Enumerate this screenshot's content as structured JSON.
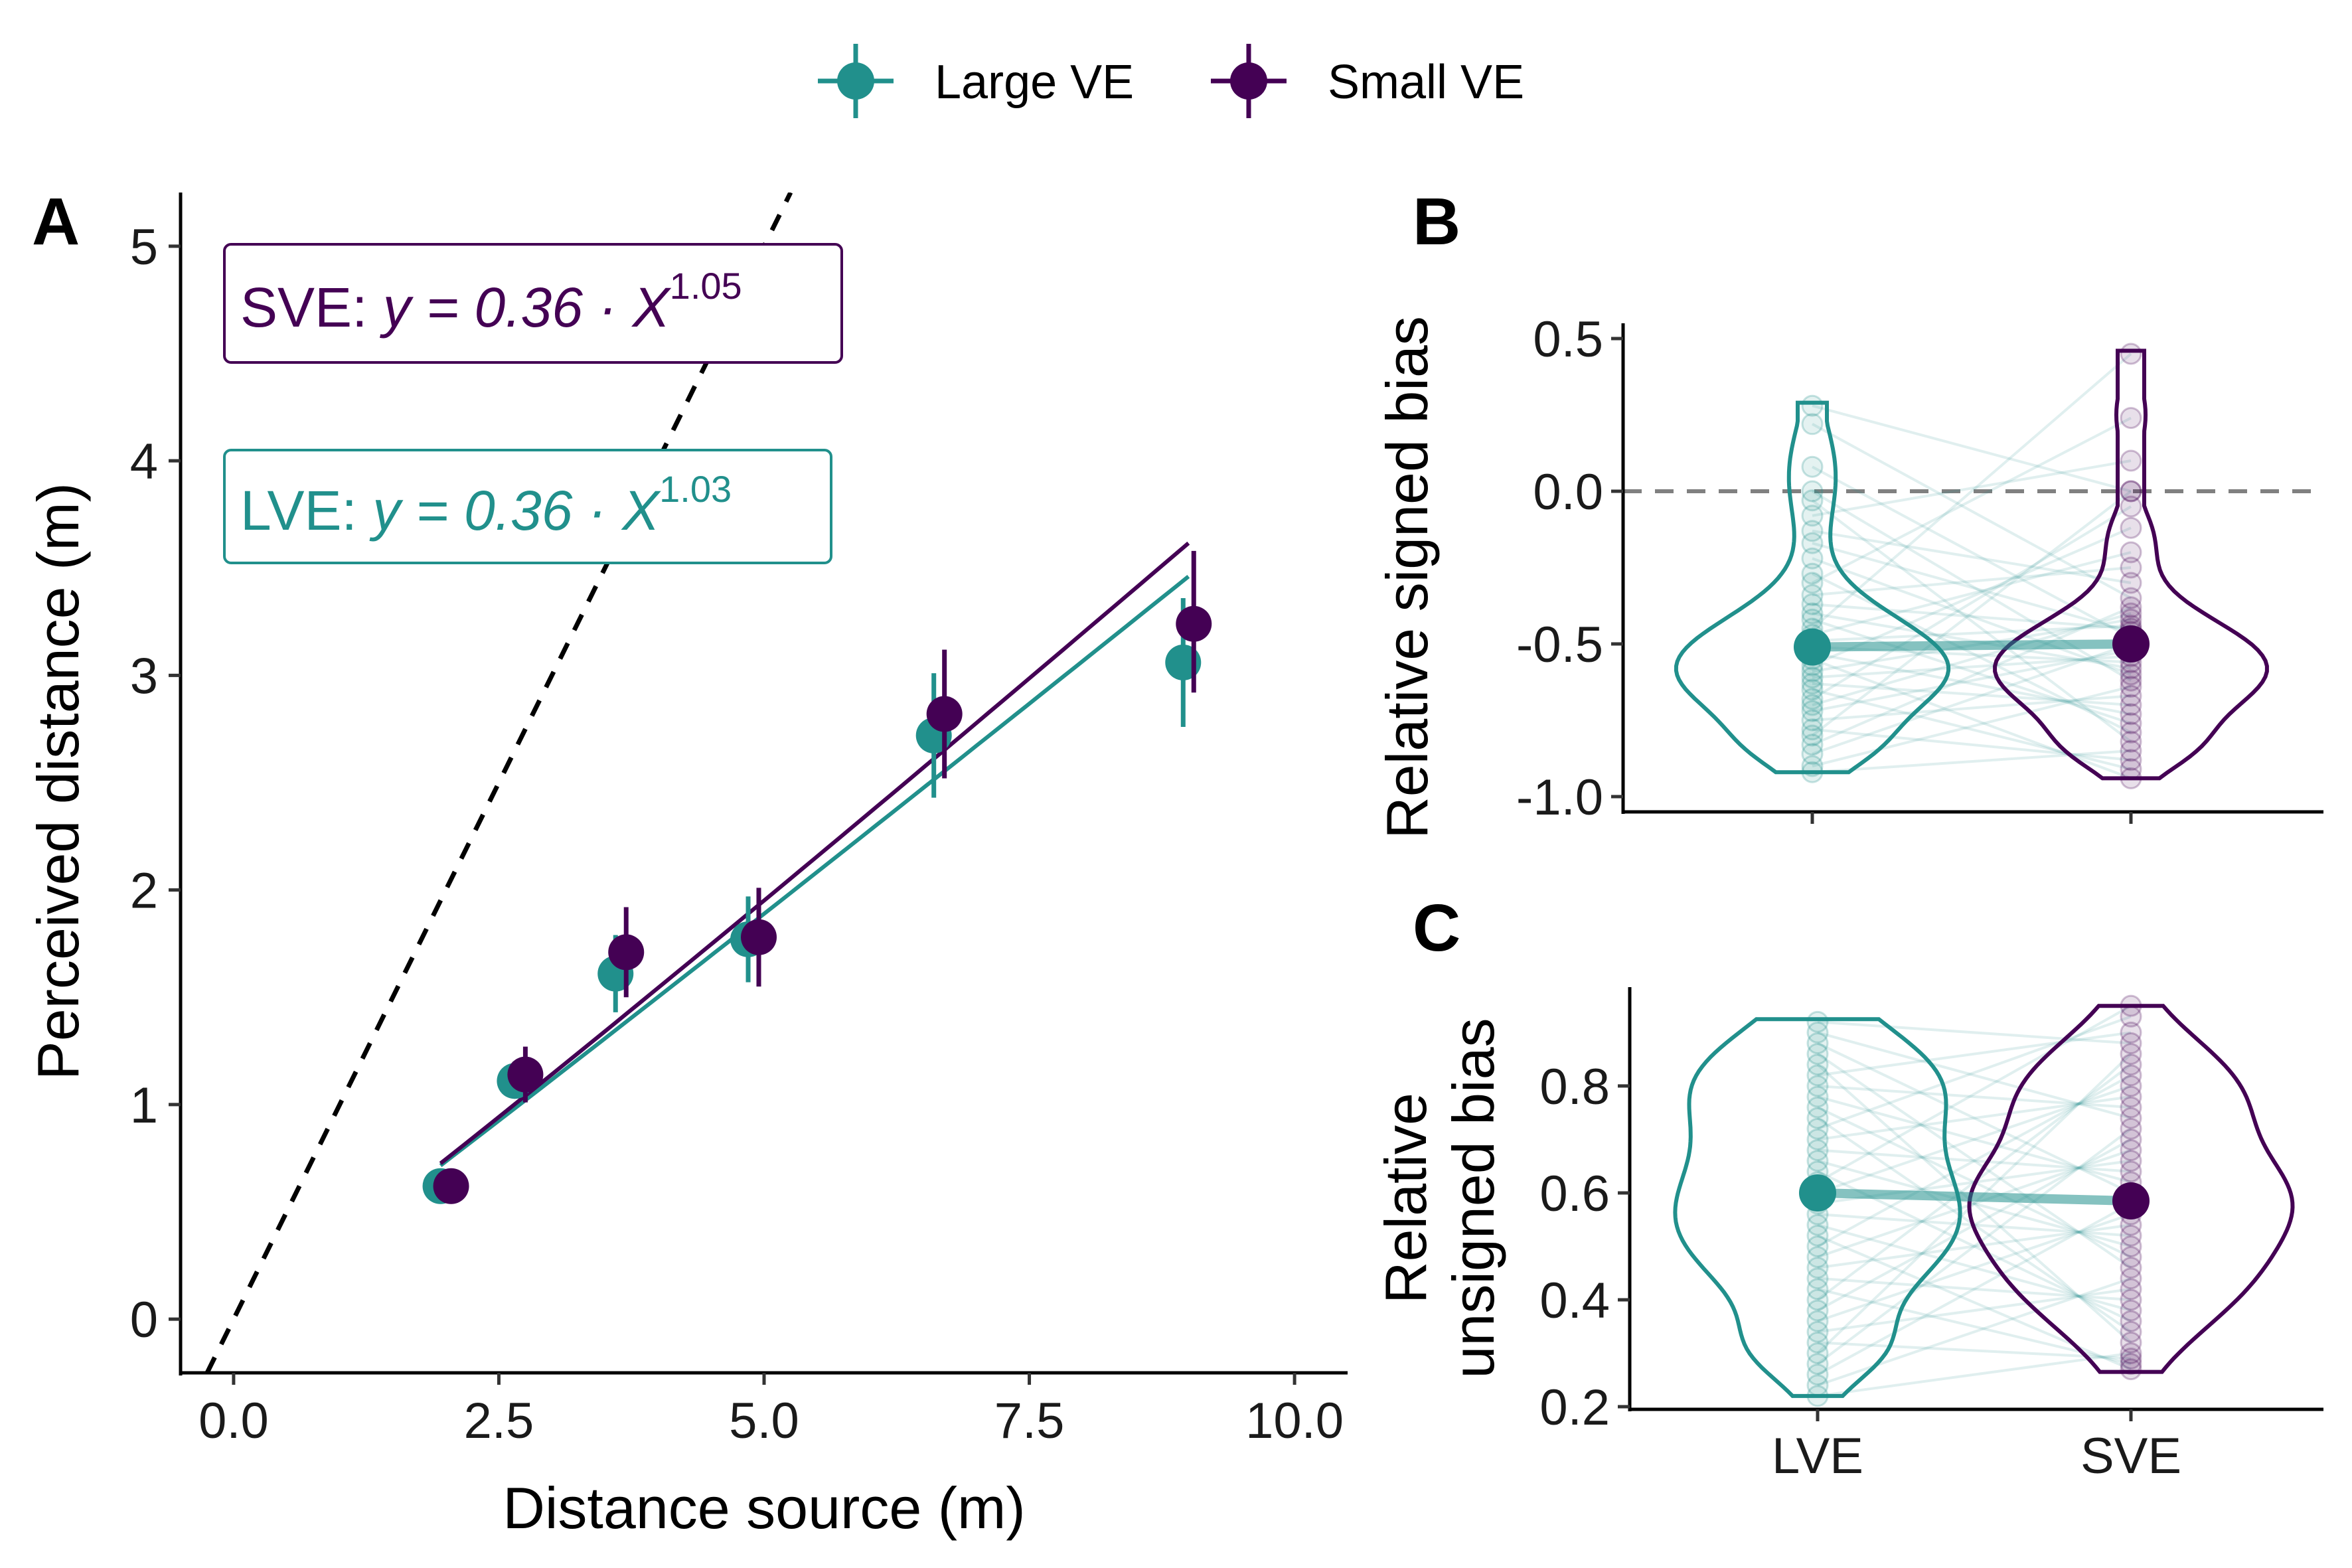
{
  "colors": {
    "large": "#21908C",
    "small": "#440154",
    "reference": "#000000",
    "zero_line": "#808080"
  },
  "legend": {
    "items": [
      {
        "label": "Large VE",
        "color": "#21908C"
      },
      {
        "label": "Small VE",
        "color": "#440154"
      }
    ],
    "placement": "top-center"
  },
  "chart_data": [
    {
      "panel": "A",
      "type": "scatter",
      "xlabel": "Distance source (m)",
      "ylabel": "Perceived distance (m)",
      "xlim": [
        -0.5,
        10.5
      ],
      "ylim": [
        -0.25,
        5.25
      ],
      "xticks": [
        "0.0",
        "2.5",
        "5.0",
        "7.5",
        "10.0"
      ],
      "xtick_values": [
        0,
        2.5,
        5,
        7.5,
        10
      ],
      "yticks": [
        "0",
        "1",
        "2",
        "3",
        "4",
        "5"
      ],
      "ytick_values": [
        0,
        1,
        2,
        3,
        4,
        5
      ],
      "reference_line": {
        "style": "dashed",
        "slope": 1,
        "intercept": 0
      },
      "annotations": [
        {
          "label": "SVE: ",
          "formula": "y = 0.36 · X",
          "exponent": "1.05",
          "series": "Small VE"
        },
        {
          "label": "LVE: ",
          "formula": "y = 0.36 · X",
          "exponent": "1.03",
          "series": "Large VE"
        }
      ],
      "series": [
        {
          "name": "Large VE",
          "x": [
            1.95,
            2.65,
            3.6,
            4.85,
            6.6,
            8.95
          ],
          "y": [
            0.62,
            1.11,
            1.61,
            1.77,
            2.72,
            3.06
          ],
          "err_low": [
            0.57,
            1.03,
            1.43,
            1.57,
            2.43,
            2.76
          ],
          "err_high": [
            0.67,
            1.2,
            1.79,
            1.97,
            3.01,
            3.36
          ],
          "fit": {
            "a": 0.36,
            "b": 1.03,
            "x_range": [
              1.95,
              9.0
            ]
          }
        },
        {
          "name": "Small VE",
          "x": [
            2.05,
            2.75,
            3.7,
            4.95,
            6.7,
            9.05
          ],
          "y": [
            0.62,
            1.14,
            1.71,
            1.78,
            2.82,
            3.24
          ],
          "err_low": [
            0.57,
            1.01,
            1.5,
            1.55,
            2.52,
            2.92
          ],
          "err_high": [
            0.67,
            1.27,
            1.92,
            2.01,
            3.12,
            3.58
          ],
          "fit": {
            "a": 0.36,
            "b": 1.05,
            "x_range": [
              1.95,
              9.0
            ]
          }
        }
      ]
    },
    {
      "panel": "B",
      "type": "violin",
      "ylabel": "Relative signed bias",
      "ylim": [
        -1.05,
        0.55
      ],
      "yticks": [
        "0.5",
        "0.0",
        "-0.5",
        "-1.0"
      ],
      "ytick_values": [
        0.5,
        0.0,
        -0.5,
        -1.0
      ],
      "categories": [
        "LVE",
        "SVE"
      ],
      "zero_line": {
        "y": 0,
        "style": "dashed"
      },
      "means": [
        -0.51,
        -0.5
      ],
      "violin_range": [
        [
          -0.92,
          0.29
        ],
        [
          -0.94,
          0.46
        ]
      ],
      "participants": {
        "LVE": [
          -0.92,
          -0.9,
          -0.86,
          -0.83,
          -0.8,
          -0.78,
          -0.75,
          -0.72,
          -0.7,
          -0.68,
          -0.65,
          -0.63,
          -0.61,
          -0.59,
          -0.57,
          -0.55,
          -0.53,
          -0.51,
          -0.49,
          -0.47,
          -0.45,
          -0.42,
          -0.4,
          -0.37,
          -0.34,
          -0.3,
          -0.27,
          -0.22,
          -0.17,
          -0.13,
          -0.08,
          -0.03,
          0.0,
          0.08,
          0.22,
          0.28
        ],
        "SVE": [
          -0.94,
          -0.91,
          -0.88,
          -0.85,
          -0.82,
          -0.79,
          -0.76,
          -0.73,
          -0.7,
          -0.67,
          -0.64,
          -0.62,
          -0.6,
          -0.58,
          -0.56,
          -0.54,
          -0.52,
          -0.5,
          -0.48,
          -0.46,
          -0.45,
          -0.44,
          -0.42,
          -0.4,
          -0.38,
          -0.35,
          -0.3,
          -0.25,
          -0.2,
          -0.12,
          -0.05,
          0.0,
          0.0,
          0.1,
          0.24,
          0.45
        ]
      }
    },
    {
      "panel": "C",
      "type": "violin",
      "ylabel": [
        "Relative",
        "unsigned bias"
      ],
      "ylim": [
        0.195,
        0.985
      ],
      "yticks": [
        "0.8",
        "0.6",
        "0.4",
        "0.2"
      ],
      "ytick_values": [
        0.8,
        0.6,
        0.4,
        0.2
      ],
      "categories": [
        "LVE",
        "SVE"
      ],
      "means": [
        0.6,
        0.585
      ],
      "violin_range": [
        [
          0.22,
          0.925
        ],
        [
          0.265,
          0.95
        ]
      ],
      "participants": {
        "LVE": [
          0.92,
          0.9,
          0.88,
          0.86,
          0.84,
          0.82,
          0.8,
          0.78,
          0.76,
          0.74,
          0.72,
          0.7,
          0.68,
          0.66,
          0.64,
          0.62,
          0.6,
          0.58,
          0.56,
          0.54,
          0.52,
          0.5,
          0.48,
          0.46,
          0.44,
          0.42,
          0.4,
          0.38,
          0.36,
          0.34,
          0.32,
          0.3,
          0.28,
          0.26,
          0.24,
          0.22
        ],
        "SVE": [
          0.95,
          0.93,
          0.9,
          0.88,
          0.86,
          0.84,
          0.82,
          0.8,
          0.78,
          0.76,
          0.74,
          0.72,
          0.7,
          0.68,
          0.66,
          0.64,
          0.62,
          0.6,
          0.58,
          0.56,
          0.54,
          0.52,
          0.5,
          0.48,
          0.46,
          0.44,
          0.42,
          0.4,
          0.38,
          0.36,
          0.34,
          0.32,
          0.3,
          0.29,
          0.28,
          0.27
        ]
      }
    }
  ]
}
